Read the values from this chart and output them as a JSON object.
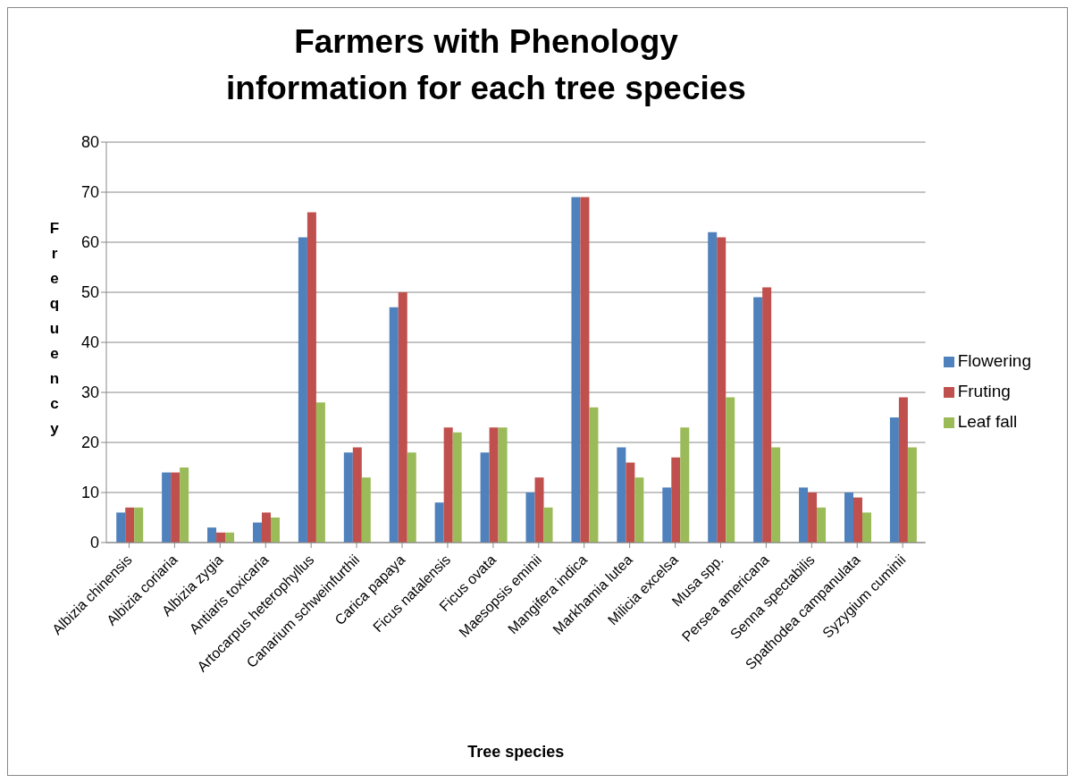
{
  "chart_data": {
    "type": "bar",
    "title": "Farmers with Phenology information for each tree species",
    "xlabel": "Tree species",
    "ylabel": "Frequency",
    "categories": [
      "Albizia chinensis",
      "Albizia coriaria",
      "Albizia zygia",
      "Antiaris toxicaria",
      "Artocarpus heterophyllus",
      "Canarium schweinfurthii",
      "Carica papaya",
      "Ficus natalensis",
      "Ficus ovata",
      "Maesopsis eminii",
      "Mangifera indica",
      "Markhamia lutea",
      "Milicia excelsa",
      "Musa spp.",
      "Persea americana",
      "Senna spectabilis",
      "Spathodea campanulata",
      "Syzygium cuminii"
    ],
    "series": [
      {
        "name": "Flowering",
        "color": "#4f81bd",
        "values": [
          6,
          14,
          3,
          4,
          61,
          18,
          47,
          8,
          18,
          10,
          69,
          19,
          11,
          62,
          49,
          11,
          10,
          25
        ]
      },
      {
        "name": "Fruting",
        "color": "#c0504d",
        "values": [
          7,
          14,
          2,
          6,
          66,
          19,
          50,
          23,
          23,
          13,
          69,
          16,
          17,
          61,
          51,
          10,
          9,
          29
        ]
      },
      {
        "name": "Leaf fall",
        "color": "#9bbb59",
        "values": [
          7,
          15,
          2,
          5,
          28,
          13,
          18,
          22,
          23,
          7,
          27,
          13,
          23,
          29,
          19,
          7,
          6,
          19
        ]
      }
    ],
    "ylim": [
      0,
      80
    ],
    "yticks": [
      0,
      10,
      20,
      30,
      40,
      50,
      60,
      70,
      80
    ],
    "grid": "y",
    "legend": "right"
  }
}
